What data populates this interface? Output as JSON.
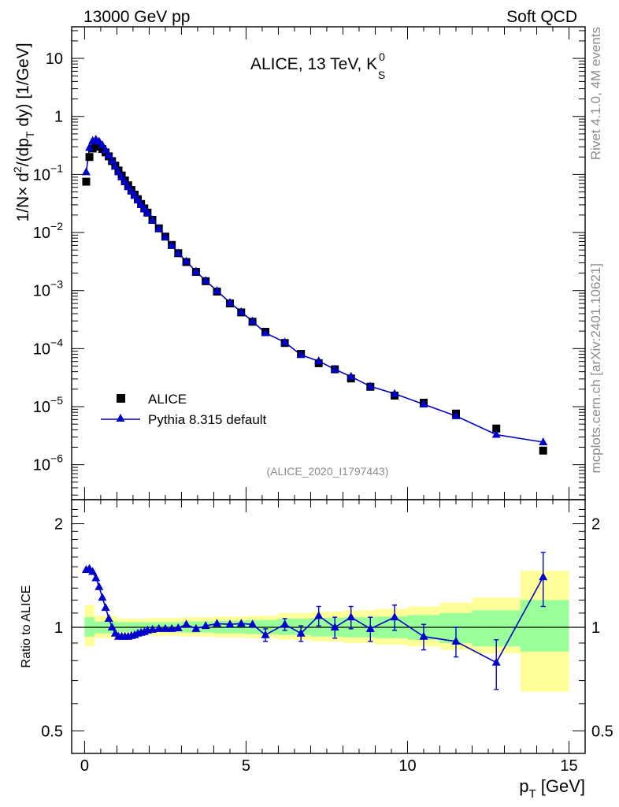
{
  "header": {
    "left": "13000 GeV pp",
    "right": "Soft QCD"
  },
  "chart_data": [
    {
      "type": "scatter",
      "panel": "main",
      "title": "ALICE, 13 TeV, K",
      "title_sup": "0",
      "title_sub": "S",
      "ylabel": "1/N × d²/(dp_T dy) [1/GeV]",
      "xlim": [
        -0.4,
        15.5
      ],
      "ylim": [
        2.5e-07,
        35
      ],
      "yscale": "log",
      "y_ticks": [
        {
          "value": 1e-06,
          "base": "10",
          "exp": "−6"
        },
        {
          "value": 1e-05,
          "base": "10",
          "exp": "−5"
        },
        {
          "value": 0.0001,
          "base": "10",
          "exp": "−4"
        },
        {
          "value": 0.001,
          "base": "10",
          "exp": "−3"
        },
        {
          "value": 0.01,
          "base": "10",
          "exp": "−2"
        },
        {
          "value": 0.1,
          "base": "10",
          "exp": "−1"
        },
        {
          "value": 1,
          "base": "1",
          "exp": ""
        },
        {
          "value": 10,
          "base": "10",
          "exp": ""
        }
      ],
      "series": [
        {
          "name": "ALICE",
          "marker": "square",
          "color": "#000000",
          "x": [
            0.05,
            0.15,
            0.25,
            0.35,
            0.45,
            0.55,
            0.65,
            0.75,
            0.85,
            0.95,
            1.05,
            1.15,
            1.25,
            1.35,
            1.45,
            1.55,
            1.65,
            1.75,
            1.85,
            1.95,
            2.1,
            2.3,
            2.5,
            2.7,
            2.9,
            3.15,
            3.45,
            3.75,
            4.1,
            4.5,
            4.85,
            5.2,
            5.6,
            6.2,
            6.7,
            7.25,
            7.75,
            8.25,
            8.85,
            9.6,
            10.5,
            11.5,
            12.75,
            14.2
          ],
          "y": [
            0.075,
            0.2,
            0.28,
            0.305,
            0.3,
            0.275,
            0.24,
            0.205,
            0.17,
            0.142,
            0.117,
            0.096,
            0.079,
            0.065,
            0.054,
            0.045,
            0.0375,
            0.031,
            0.026,
            0.022,
            0.0165,
            0.0118,
            0.0085,
            0.0061,
            0.0044,
            0.0031,
            0.0021,
            0.00145,
            0.00096,
            0.0006,
            0.00042,
            0.00029,
            0.000195,
            0.000125,
            8.1e-05,
            5.6e-05,
            4.4e-05,
            3.06e-05,
            2.2e-05,
            1.55e-05,
            1.17e-05,
            7.6e-06,
            4.2e-06,
            1.75e-06
          ]
        },
        {
          "name": "Pythia 8.315 default",
          "marker": "triangle",
          "color": "#0000cc",
          "x": [
            0.05,
            0.15,
            0.25,
            0.35,
            0.45,
            0.55,
            0.65,
            0.75,
            0.85,
            0.95,
            1.05,
            1.15,
            1.25,
            1.35,
            1.45,
            1.55,
            1.65,
            1.75,
            1.85,
            1.95,
            2.1,
            2.3,
            2.5,
            2.7,
            2.9,
            3.15,
            3.45,
            3.75,
            4.1,
            4.5,
            4.85,
            5.2,
            5.6,
            6.2,
            6.7,
            7.25,
            7.75,
            8.25,
            8.85,
            9.6,
            10.5,
            11.5,
            12.75,
            14.2
          ],
          "y": [
            0.11,
            0.29,
            0.38,
            0.4,
            0.37,
            0.32,
            0.265,
            0.215,
            0.172,
            0.137,
            0.11,
            0.09,
            0.074,
            0.061,
            0.051,
            0.043,
            0.036,
            0.03,
            0.0255,
            0.0217,
            0.0163,
            0.0117,
            0.0084,
            0.006,
            0.0044,
            0.0032,
            0.00213,
            0.00148,
            0.00099,
            0.00062,
            0.00043,
            0.000296,
            0.000186,
            0.000129,
            7.8e-05,
            6.1e-05,
            4.4e-05,
            3.3e-05,
            2.23e-05,
            1.67e-05,
            1.1e-05,
            6.9e-06,
            3.3e-06,
            2.45e-06
          ]
        }
      ],
      "legend": {
        "position": "bottom-left",
        "entries": [
          "ALICE",
          "Pythia 8.315 default"
        ]
      },
      "annotation": "(ALICE_2020_I1797443)"
    },
    {
      "type": "scatter",
      "panel": "ratio",
      "ylabel": "Ratio to ALICE",
      "xlabel": "p_T [GeV]",
      "xlim": [
        -0.4,
        15.5
      ],
      "ylim": [
        0.43,
        2.35
      ],
      "yscale": "log",
      "x_ticks": [
        0,
        5,
        10,
        15
      ],
      "y_ticks": [
        0.5,
        1,
        2
      ],
      "bands": [
        {
          "x_edges": [
            0,
            0.3,
            1.0,
            2.0,
            3.0,
            4.0,
            5.0,
            6.0,
            7.0,
            8.0,
            9.0,
            10.0,
            11.0,
            12.0,
            13.5,
            15.0
          ],
          "yellow_lo": [
            0.88,
            0.93,
            0.95,
            0.945,
            0.94,
            0.935,
            0.93,
            0.92,
            0.91,
            0.9,
            0.89,
            0.88,
            0.86,
            0.84,
            0.65
          ],
          "yellow_hi": [
            1.16,
            1.08,
            1.06,
            1.065,
            1.07,
            1.075,
            1.08,
            1.1,
            1.11,
            1.12,
            1.13,
            1.15,
            1.18,
            1.22,
            1.46
          ],
          "green_lo": [
            0.94,
            0.96,
            0.97,
            0.97,
            0.965,
            0.96,
            0.955,
            0.95,
            0.94,
            0.935,
            0.93,
            0.92,
            0.9,
            0.88,
            0.85
          ],
          "green_hi": [
            1.07,
            1.04,
            1.035,
            1.035,
            1.04,
            1.045,
            1.05,
            1.06,
            1.065,
            1.07,
            1.075,
            1.085,
            1.1,
            1.12,
            1.2
          ]
        }
      ],
      "series": [
        {
          "name": "Pythia 8.315 default / ALICE",
          "x": [
            0.05,
            0.15,
            0.25,
            0.35,
            0.45,
            0.55,
            0.65,
            0.75,
            0.85,
            0.95,
            1.05,
            1.15,
            1.25,
            1.35,
            1.45,
            1.55,
            1.65,
            1.75,
            1.85,
            1.95,
            2.1,
            2.3,
            2.5,
            2.7,
            2.9,
            3.15,
            3.45,
            3.75,
            4.1,
            4.5,
            4.85,
            5.2,
            5.6,
            6.2,
            6.7,
            7.25,
            7.75,
            8.25,
            8.85,
            9.6,
            10.5,
            11.5,
            12.75,
            14.2
          ],
          "y": [
            1.47,
            1.48,
            1.45,
            1.39,
            1.31,
            1.22,
            1.14,
            1.06,
            1.0,
            0.96,
            0.94,
            0.94,
            0.94,
            0.94,
            0.945,
            0.95,
            0.96,
            0.965,
            0.97,
            0.98,
            0.985,
            0.99,
            0.99,
            0.99,
            0.995,
            1.02,
            0.99,
            1.01,
            1.025,
            1.02,
            1.025,
            1.02,
            0.95,
            1.02,
            0.96,
            1.08,
            1.0,
            1.07,
            0.99,
            1.07,
            0.94,
            0.91,
            0.79,
            1.4
          ],
          "yerr": [
            0,
            0,
            0,
            0,
            0,
            0,
            0,
            0,
            0,
            0,
            0,
            0,
            0,
            0,
            0,
            0,
            0,
            0,
            0,
            0,
            0,
            0,
            0,
            0,
            0,
            0,
            0,
            0,
            0,
            0,
            0,
            0,
            0.04,
            0.04,
            0.05,
            0.07,
            0.07,
            0.08,
            0.08,
            0.09,
            0.08,
            0.09,
            0.13,
            0.25
          ]
        }
      ]
    }
  ],
  "side_text": {
    "rivet": "Rivet 4.1.0,  4M events",
    "mcplots": "mcplots.cern.ch [arXiv:2401.10621]"
  }
}
